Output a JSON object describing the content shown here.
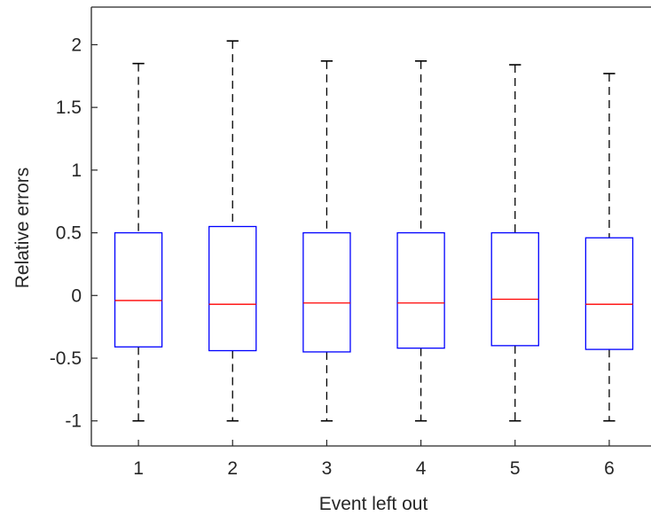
{
  "chart_data": {
    "type": "boxplot",
    "xlabel": "Event left out",
    "ylabel": "Relative errors",
    "ylim": [
      -1.2,
      2.3
    ],
    "xlim": [
      0.5,
      6.5
    ],
    "grid": false,
    "yticks": [
      -1,
      -0.5,
      0,
      0.5,
      1,
      1.5,
      2
    ],
    "ytick_labels": [
      "-1",
      "-0.5",
      "0",
      "0.5",
      "1",
      "1.5",
      "2"
    ],
    "categories": [
      "1",
      "2",
      "3",
      "4",
      "5",
      "6"
    ],
    "boxes": [
      {
        "category": "1",
        "whisker_low": -1.0,
        "q1": -0.41,
        "median": -0.04,
        "q3": 0.5,
        "whisker_high": 1.85
      },
      {
        "category": "2",
        "whisker_low": -1.0,
        "q1": -0.44,
        "median": -0.07,
        "q3": 0.55,
        "whisker_high": 2.03
      },
      {
        "category": "3",
        "whisker_low": -1.0,
        "q1": -0.45,
        "median": -0.06,
        "q3": 0.5,
        "whisker_high": 1.87
      },
      {
        "category": "4",
        "whisker_low": -1.0,
        "q1": -0.42,
        "median": -0.06,
        "q3": 0.5,
        "whisker_high": 1.87
      },
      {
        "category": "5",
        "whisker_low": -1.0,
        "q1": -0.4,
        "median": -0.03,
        "q3": 0.5,
        "whisker_high": 1.84
      },
      {
        "category": "6",
        "whisker_low": -1.0,
        "q1": -0.43,
        "median": -0.07,
        "q3": 0.46,
        "whisker_high": 1.77
      }
    ],
    "colors": {
      "box": "#0000ff",
      "median": "#ff0000",
      "whisker": "#000000",
      "axes": "#262626"
    }
  }
}
